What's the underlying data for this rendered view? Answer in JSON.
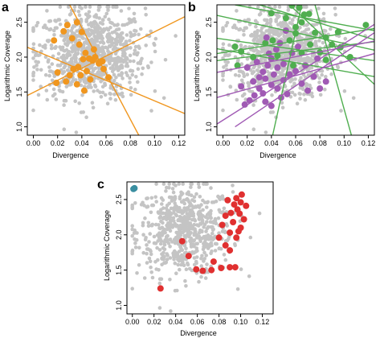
{
  "chart_data": [
    {
      "type": "scatter",
      "panel_label": "a",
      "xlabel": "Divergence",
      "ylabel": "Logarithmic  Coverage",
      "xlim": [
        -0.005,
        0.125
      ],
      "ylim": [
        0.88,
        2.75
      ],
      "xticks": [
        "0.00",
        "0.02",
        "0.04",
        "0.06",
        "0.08",
        "0.10",
        "0.12"
      ],
      "yticks": [
        "1.0",
        "1.5",
        "2.0",
        "2.5"
      ],
      "background_color": "#c4c4c4",
      "highlight_color": "#f0961e",
      "highlight_points": [
        [
          0.017,
          2.24
        ],
        [
          0.025,
          2.37
        ],
        [
          0.028,
          2.46
        ],
        [
          0.032,
          2.27
        ],
        [
          0.036,
          2.5
        ],
        [
          0.04,
          2.36
        ],
        [
          0.038,
          2.18
        ],
        [
          0.043,
          2.06
        ],
        [
          0.046,
          1.98
        ],
        [
          0.049,
          1.95
        ],
        [
          0.051,
          2.0
        ],
        [
          0.054,
          1.91
        ],
        [
          0.05,
          2.11
        ],
        [
          0.041,
          1.97
        ],
        [
          0.037,
          1.86
        ],
        [
          0.033,
          1.83
        ],
        [
          0.03,
          1.74
        ],
        [
          0.027,
          1.65
        ],
        [
          0.02,
          1.78
        ],
        [
          0.019,
          1.63
        ],
        [
          0.039,
          1.74
        ],
        [
          0.044,
          1.8
        ],
        [
          0.047,
          1.68
        ],
        [
          0.057,
          1.94
        ],
        [
          0.062,
          1.71
        ],
        [
          0.058,
          1.83
        ],
        [
          0.036,
          1.61
        ],
        [
          0.042,
          1.52
        ]
      ],
      "fit_lines": [
        [
          [
            0.03,
            2.75
          ],
          [
            0.087,
            0.88
          ]
        ],
        [
          [
            -0.005,
            2.14
          ],
          [
            0.125,
            1.19
          ]
        ],
        [
          [
            -0.005,
            1.45
          ],
          [
            0.125,
            2.58
          ]
        ]
      ]
    },
    {
      "type": "scatter",
      "panel_label": "b",
      "xlabel": "Divergence",
      "ylabel": "Logarithmic  Coverage",
      "xlim": [
        -0.005,
        0.125
      ],
      "ylim": [
        0.88,
        2.75
      ],
      "xticks": [
        "0.00",
        "0.02",
        "0.04",
        "0.06",
        "0.08",
        "0.10",
        "0.12"
      ],
      "yticks": [
        "1.0",
        "1.5",
        "2.0",
        "2.5"
      ],
      "background_color": "#c4c4c4",
      "series": [
        {
          "color": "#4fae4f",
          "points": [
            [
              0.04,
              2.63
            ],
            [
              0.052,
              2.56
            ],
            [
              0.057,
              2.74
            ],
            [
              0.063,
              2.71
            ],
            [
              0.067,
              2.61
            ],
            [
              0.06,
              2.43
            ],
            [
              0.055,
              2.24
            ],
            [
              0.072,
              2.18
            ],
            [
              0.08,
              2.07
            ],
            [
              0.085,
              2.28
            ],
            [
              0.095,
              2.36
            ],
            [
              0.097,
              2.14
            ],
            [
              0.085,
              1.96
            ],
            [
              0.065,
              2.06
            ],
            [
              0.058,
              1.88
            ],
            [
              0.06,
              2.34
            ],
            [
              0.045,
              2.02
            ],
            [
              0.041,
              2.24
            ],
            [
              0.035,
              2.2
            ],
            [
              0.015,
              2.08
            ],
            [
              0.025,
              2.0
            ],
            [
              0.012,
              1.88
            ],
            [
              0.118,
              2.46
            ],
            [
              0.071,
              2.62
            ],
            [
              0.076,
              2.35
            ],
            [
              0.09,
              2.18
            ],
            [
              0.01,
              2.15
            ],
            [
              0.065,
              2.5
            ],
            [
              0.105,
              2.0
            ]
          ]
        },
        {
          "color": "#a05ab4",
          "points": [
            [
              0.052,
              2.38
            ],
            [
              0.047,
              2.2
            ],
            [
              0.044,
              2.11
            ],
            [
              0.04,
              1.98
            ],
            [
              0.037,
              1.88
            ],
            [
              0.033,
              1.79
            ],
            [
              0.03,
              1.71
            ],
            [
              0.035,
              1.69
            ],
            [
              0.04,
              1.6
            ],
            [
              0.045,
              1.55
            ],
            [
              0.05,
              1.67
            ],
            [
              0.055,
              1.75
            ],
            [
              0.03,
              1.55
            ],
            [
              0.026,
              1.45
            ],
            [
              0.022,
              1.38
            ],
            [
              0.018,
              1.32
            ],
            [
              0.035,
              1.36
            ],
            [
              0.04,
              1.3
            ],
            [
              0.048,
              1.42
            ],
            [
              0.028,
              1.93
            ],
            [
              0.02,
              1.85
            ],
            [
              0.06,
              1.8
            ],
            [
              0.065,
              1.62
            ],
            [
              0.07,
              1.52
            ],
            [
              0.075,
              1.72
            ],
            [
              0.08,
              1.55
            ],
            [
              0.057,
              2.06
            ],
            [
              0.042,
              1.75
            ],
            [
              0.036,
              2.28
            ],
            [
              0.05,
              1.9
            ],
            [
              0.025,
              1.65
            ],
            [
              0.062,
              2.15
            ],
            [
              0.015,
              1.58
            ],
            [
              0.033,
              1.48
            ],
            [
              0.045,
              1.85
            ],
            [
              0.053,
              1.47
            ],
            [
              0.038,
              2.05
            ],
            [
              0.068,
              1.88
            ],
            [
              0.078,
              1.98
            ],
            [
              0.085,
              1.65
            ]
          ]
        }
      ],
      "fit_lines": [
        {
          "color": "#4fae4f",
          "points": [
            [
              -0.005,
              2.6
            ],
            [
              0.125,
              2.1
            ]
          ]
        },
        {
          "color": "#4fae4f",
          "points": [
            [
              -0.005,
              2.27
            ],
            [
              0.125,
              1.95
            ]
          ]
        },
        {
          "color": "#4fae4f",
          "points": [
            [
              -0.005,
              2.05
            ],
            [
              0.125,
              2.41
            ]
          ]
        },
        {
          "color": "#4fae4f",
          "points": [
            [
              -0.005,
              1.95
            ],
            [
              0.125,
              2.22
            ]
          ]
        },
        {
          "color": "#4fae4f",
          "points": [
            [
              0.01,
              2.75
            ],
            [
              0.125,
              2.38
            ]
          ]
        },
        {
          "color": "#4fae4f",
          "points": [
            [
              0.055,
              2.75
            ],
            [
              0.125,
              1.61
            ]
          ]
        },
        {
          "color": "#4fae4f",
          "points": [
            [
              0.076,
              2.75
            ],
            [
              0.106,
              0.88
            ]
          ]
        },
        {
          "color": "#4fae4f",
          "points": [
            [
              0.041,
              0.88
            ],
            [
              0.065,
              2.75
            ]
          ]
        },
        {
          "color": "#4fae4f",
          "points": [
            [
              -0.005,
              2.12
            ],
            [
              0.125,
              1.72
            ]
          ]
        },
        {
          "color": "#4fae4f",
          "points": [
            [
              0.03,
              2.75
            ],
            [
              0.125,
              2.25
            ]
          ]
        },
        {
          "color": "#a05ab4",
          "points": [
            [
              -0.005,
              1.04
            ],
            [
              0.125,
              2.47
            ]
          ]
        },
        {
          "color": "#a05ab4",
          "points": [
            [
              -0.005,
              1.78
            ],
            [
              0.125,
              2.23
            ]
          ]
        },
        {
          "color": "#a05ab4",
          "points": [
            [
              -0.005,
              1.42
            ],
            [
              0.125,
              2.05
            ]
          ]
        },
        {
          "color": "#a05ab4",
          "points": [
            [
              0.01,
              1.0
            ],
            [
              0.125,
              2.35
            ]
          ]
        }
      ]
    },
    {
      "type": "scatter",
      "panel_label": "c",
      "xlabel": "Divergence",
      "ylabel": "Logarithmic  Coverage",
      "xlim": [
        -0.005,
        0.13
      ],
      "ylim": [
        0.88,
        2.75
      ],
      "xticks": [
        "0.00",
        "0.02",
        "0.04",
        "0.06",
        "0.08",
        "0.10",
        "0.12"
      ],
      "yticks": [
        "1.0",
        "1.5",
        "2.0",
        "2.5"
      ],
      "background_color": "#c4c4c4",
      "series": [
        {
          "color": "#3a8ea0",
          "points": [
            [
              0.001,
              2.65
            ],
            [
              0.002,
              2.66
            ]
          ]
        },
        {
          "color": "#e03030",
          "points": [
            [
              0.101,
              2.57
            ],
            [
              0.096,
              2.52
            ],
            [
              0.088,
              2.49
            ],
            [
              0.094,
              2.43
            ],
            [
              0.1,
              2.46
            ],
            [
              0.105,
              2.41
            ],
            [
              0.097,
              2.36
            ],
            [
              0.091,
              2.31
            ],
            [
              0.086,
              2.27
            ],
            [
              0.099,
              2.3
            ],
            [
              0.103,
              2.22
            ],
            [
              0.093,
              2.18
            ],
            [
              0.083,
              2.14
            ],
            [
              0.1,
              2.1
            ],
            [
              0.09,
              2.03
            ],
            [
              0.08,
              1.96
            ],
            [
              0.096,
              1.96
            ],
            [
              0.086,
              1.85
            ],
            [
              0.046,
              1.91
            ],
            [
              0.052,
              1.7
            ],
            [
              0.059,
              1.51
            ],
            [
              0.065,
              1.49
            ],
            [
              0.073,
              1.5
            ],
            [
              0.082,
              1.53
            ],
            [
              0.09,
              1.54
            ],
            [
              0.095,
              1.54
            ],
            [
              0.075,
              1.62
            ],
            [
              0.026,
              1.24
            ],
            [
              0.09,
              1.78
            ],
            [
              0.098,
              2.05
            ]
          ]
        }
      ]
    }
  ]
}
